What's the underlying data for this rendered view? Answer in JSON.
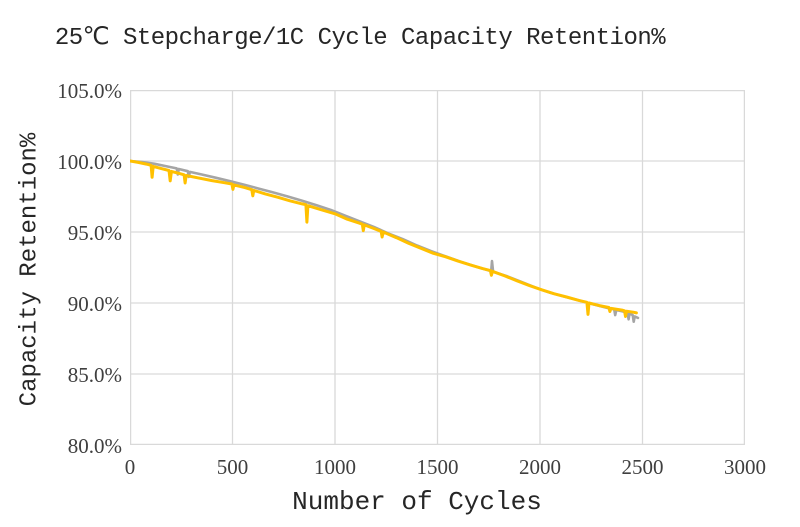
{
  "colors": {
    "background": "#ffffff",
    "gridline": "#d9d9d9",
    "plot_border": "#d9d9d9",
    "tick_text": "#3f3f3f",
    "title_text": "#262626",
    "series_gray": "#a5a5a5",
    "series_yellow": "#ffc000"
  },
  "chart_data": {
    "type": "line",
    "title": "25℃ Stepcharge/1C Cycle Capacity Retention%",
    "xlabel": "Number of Cycles",
    "ylabel": "Capacity Retention%",
    "xlim": [
      0,
      3000
    ],
    "ylim": [
      80,
      105
    ],
    "grid": true,
    "legend_position": "none",
    "x_tick_values": [
      0,
      500,
      1000,
      1500,
      2000,
      2500,
      3000
    ],
    "x_tick_labels": [
      "0",
      "500",
      "1000",
      "1500",
      "2000",
      "2500",
      "3000"
    ],
    "y_tick_values": [
      105,
      100,
      95,
      90,
      85,
      80
    ],
    "y_tick_labels": [
      "105.0%",
      "100.0%",
      "95.0%",
      "90.0%",
      "85.0%",
      "80.0%"
    ],
    "series": [
      {
        "name": "gray-series",
        "color": "#a5a5a5",
        "stroke_width": 2.6,
        "points": [
          [
            0,
            100.0
          ],
          [
            60,
            99.93
          ],
          [
            120,
            99.8
          ],
          [
            180,
            99.62
          ],
          [
            228,
            99.48
          ],
          [
            233,
            99.05
          ],
          [
            238,
            99.44
          ],
          [
            282,
            99.28
          ],
          [
            287,
            98.88
          ],
          [
            292,
            99.23
          ],
          [
            350,
            99.05
          ],
          [
            420,
            98.82
          ],
          [
            490,
            98.57
          ],
          [
            560,
            98.32
          ],
          [
            630,
            98.05
          ],
          [
            700,
            97.78
          ],
          [
            770,
            97.5
          ],
          [
            840,
            97.2
          ],
          [
            910,
            96.88
          ],
          [
            980,
            96.55
          ],
          [
            1050,
            96.15
          ],
          [
            1120,
            95.75
          ],
          [
            1190,
            95.35
          ],
          [
            1260,
            94.9
          ],
          [
            1330,
            94.5
          ],
          [
            1400,
            94.05
          ],
          [
            1470,
            93.65
          ],
          [
            1540,
            93.28
          ],
          [
            1610,
            92.92
          ],
          [
            1680,
            92.6
          ],
          [
            1745,
            92.32
          ],
          [
            1762,
            92.25
          ],
          [
            1766,
            92.95
          ],
          [
            1771,
            92.2
          ],
          [
            1840,
            91.88
          ],
          [
            1910,
            91.48
          ],
          [
            1980,
            91.08
          ],
          [
            2050,
            90.72
          ],
          [
            2120,
            90.45
          ],
          [
            2190,
            90.18
          ],
          [
            2260,
            89.9
          ],
          [
            2330,
            89.65
          ],
          [
            2362,
            89.55
          ],
          [
            2367,
            89.15
          ],
          [
            2372,
            89.5
          ],
          [
            2400,
            89.42
          ],
          [
            2427,
            89.32
          ],
          [
            2432,
            88.85
          ],
          [
            2437,
            89.27
          ],
          [
            2452,
            89.15
          ],
          [
            2457,
            88.68
          ],
          [
            2462,
            89.05
          ],
          [
            2478,
            88.95
          ]
        ]
      },
      {
        "name": "yellow-series",
        "color": "#ffc000",
        "stroke_width": 3,
        "points": [
          [
            0,
            100.0
          ],
          [
            40,
            99.9
          ],
          [
            80,
            99.78
          ],
          [
            103,
            99.7
          ],
          [
            108,
            98.85
          ],
          [
            113,
            99.62
          ],
          [
            150,
            99.48
          ],
          [
            190,
            99.33
          ],
          [
            196,
            98.6
          ],
          [
            202,
            99.27
          ],
          [
            240,
            99.13
          ],
          [
            264,
            99.03
          ],
          [
            269,
            98.45
          ],
          [
            274,
            98.98
          ],
          [
            330,
            98.82
          ],
          [
            400,
            98.62
          ],
          [
            460,
            98.47
          ],
          [
            497,
            98.38
          ],
          [
            502,
            98.0
          ],
          [
            507,
            98.32
          ],
          [
            560,
            98.13
          ],
          [
            594,
            97.98
          ],
          [
            599,
            97.55
          ],
          [
            604,
            97.93
          ],
          [
            660,
            97.68
          ],
          [
            720,
            97.45
          ],
          [
            780,
            97.2
          ],
          [
            840,
            96.98
          ],
          [
            858,
            96.92
          ],
          [
            863,
            95.7
          ],
          [
            868,
            96.85
          ],
          [
            930,
            96.58
          ],
          [
            1000,
            96.28
          ],
          [
            1060,
            95.9
          ],
          [
            1120,
            95.62
          ],
          [
            1133,
            95.55
          ],
          [
            1138,
            95.1
          ],
          [
            1143,
            95.5
          ],
          [
            1190,
            95.25
          ],
          [
            1225,
            95.05
          ],
          [
            1230,
            94.65
          ],
          [
            1235,
            95.0
          ],
          [
            1300,
            94.6
          ],
          [
            1360,
            94.2
          ],
          [
            1420,
            93.85
          ],
          [
            1480,
            93.5
          ],
          [
            1540,
            93.25
          ],
          [
            1600,
            92.95
          ],
          [
            1660,
            92.68
          ],
          [
            1720,
            92.42
          ],
          [
            1758,
            92.28
          ],
          [
            1763,
            91.95
          ],
          [
            1768,
            92.23
          ],
          [
            1830,
            91.9
          ],
          [
            1890,
            91.55
          ],
          [
            1950,
            91.22
          ],
          [
            2010,
            90.92
          ],
          [
            2070,
            90.65
          ],
          [
            2130,
            90.42
          ],
          [
            2190,
            90.18
          ],
          [
            2229,
            90.05
          ],
          [
            2234,
            89.2
          ],
          [
            2239,
            90.0
          ],
          [
            2290,
            89.82
          ],
          [
            2336,
            89.68
          ],
          [
            2341,
            89.4
          ],
          [
            2346,
            89.62
          ],
          [
            2400,
            89.5
          ],
          [
            2412,
            89.45
          ],
          [
            2417,
            89.05
          ],
          [
            2422,
            89.42
          ],
          [
            2455,
            89.35
          ],
          [
            2470,
            89.3
          ]
        ]
      }
    ]
  }
}
